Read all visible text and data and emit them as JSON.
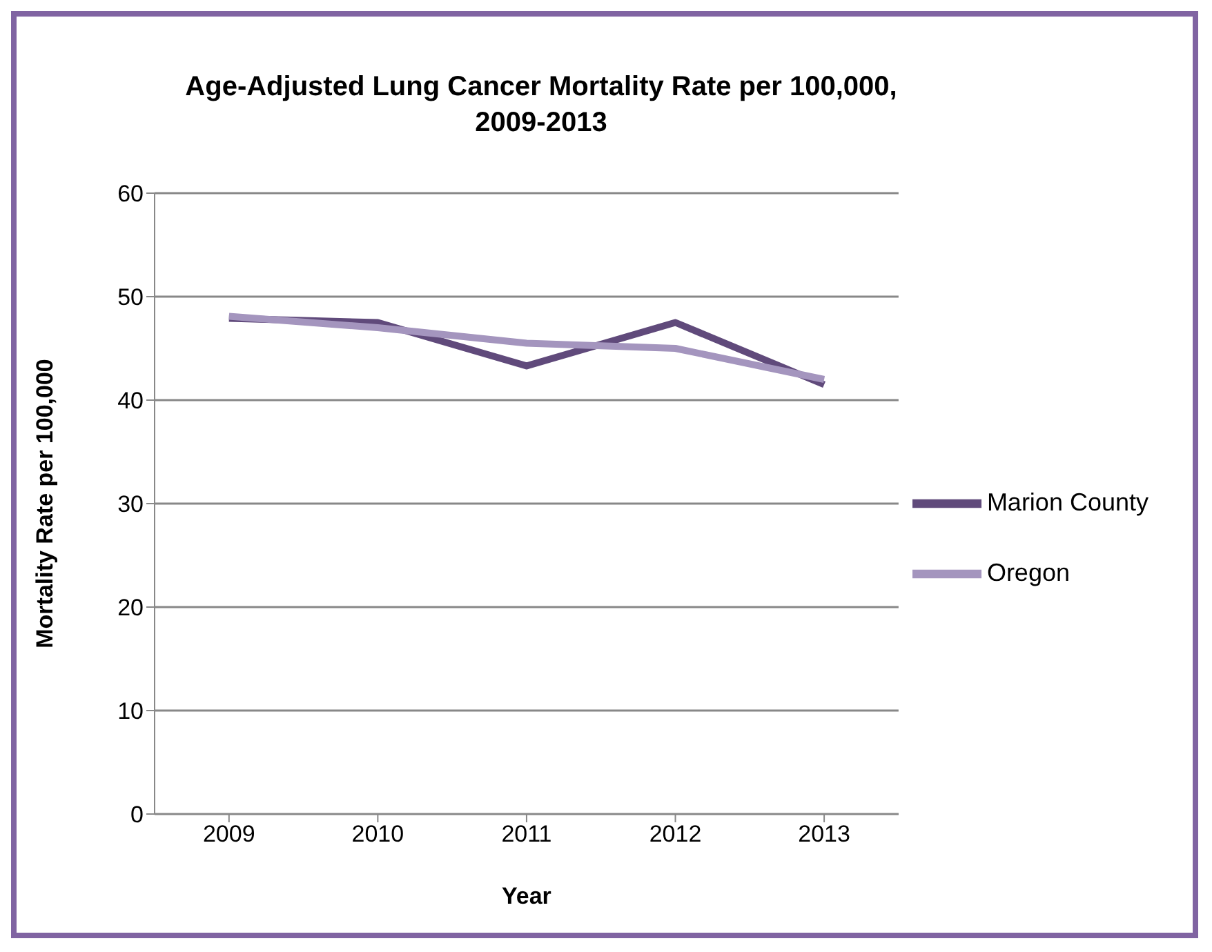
{
  "chart_data": {
    "type": "line",
    "title": "Age-Adjusted Lung Cancer Mortality Rate per 100,000, 2009-2013",
    "xlabel": "Year",
    "ylabel": "Mortality Rate per 100,000",
    "categories": [
      "2009",
      "2010",
      "2011",
      "2012",
      "2013"
    ],
    "series": [
      {
        "name": "Marion County",
        "color": "#604a7b",
        "values": [
          47.9,
          47.5,
          43.3,
          47.5,
          41.5
        ]
      },
      {
        "name": "Oregon",
        "color": "#a495be",
        "values": [
          48.1,
          47.0,
          45.5,
          45.0,
          42.0
        ]
      }
    ],
    "ylim": [
      0,
      60
    ],
    "yticks": [
      0,
      10,
      20,
      30,
      40,
      50,
      60
    ],
    "grid": "y",
    "legend": "right",
    "marker": "none",
    "line_style": "solid"
  }
}
